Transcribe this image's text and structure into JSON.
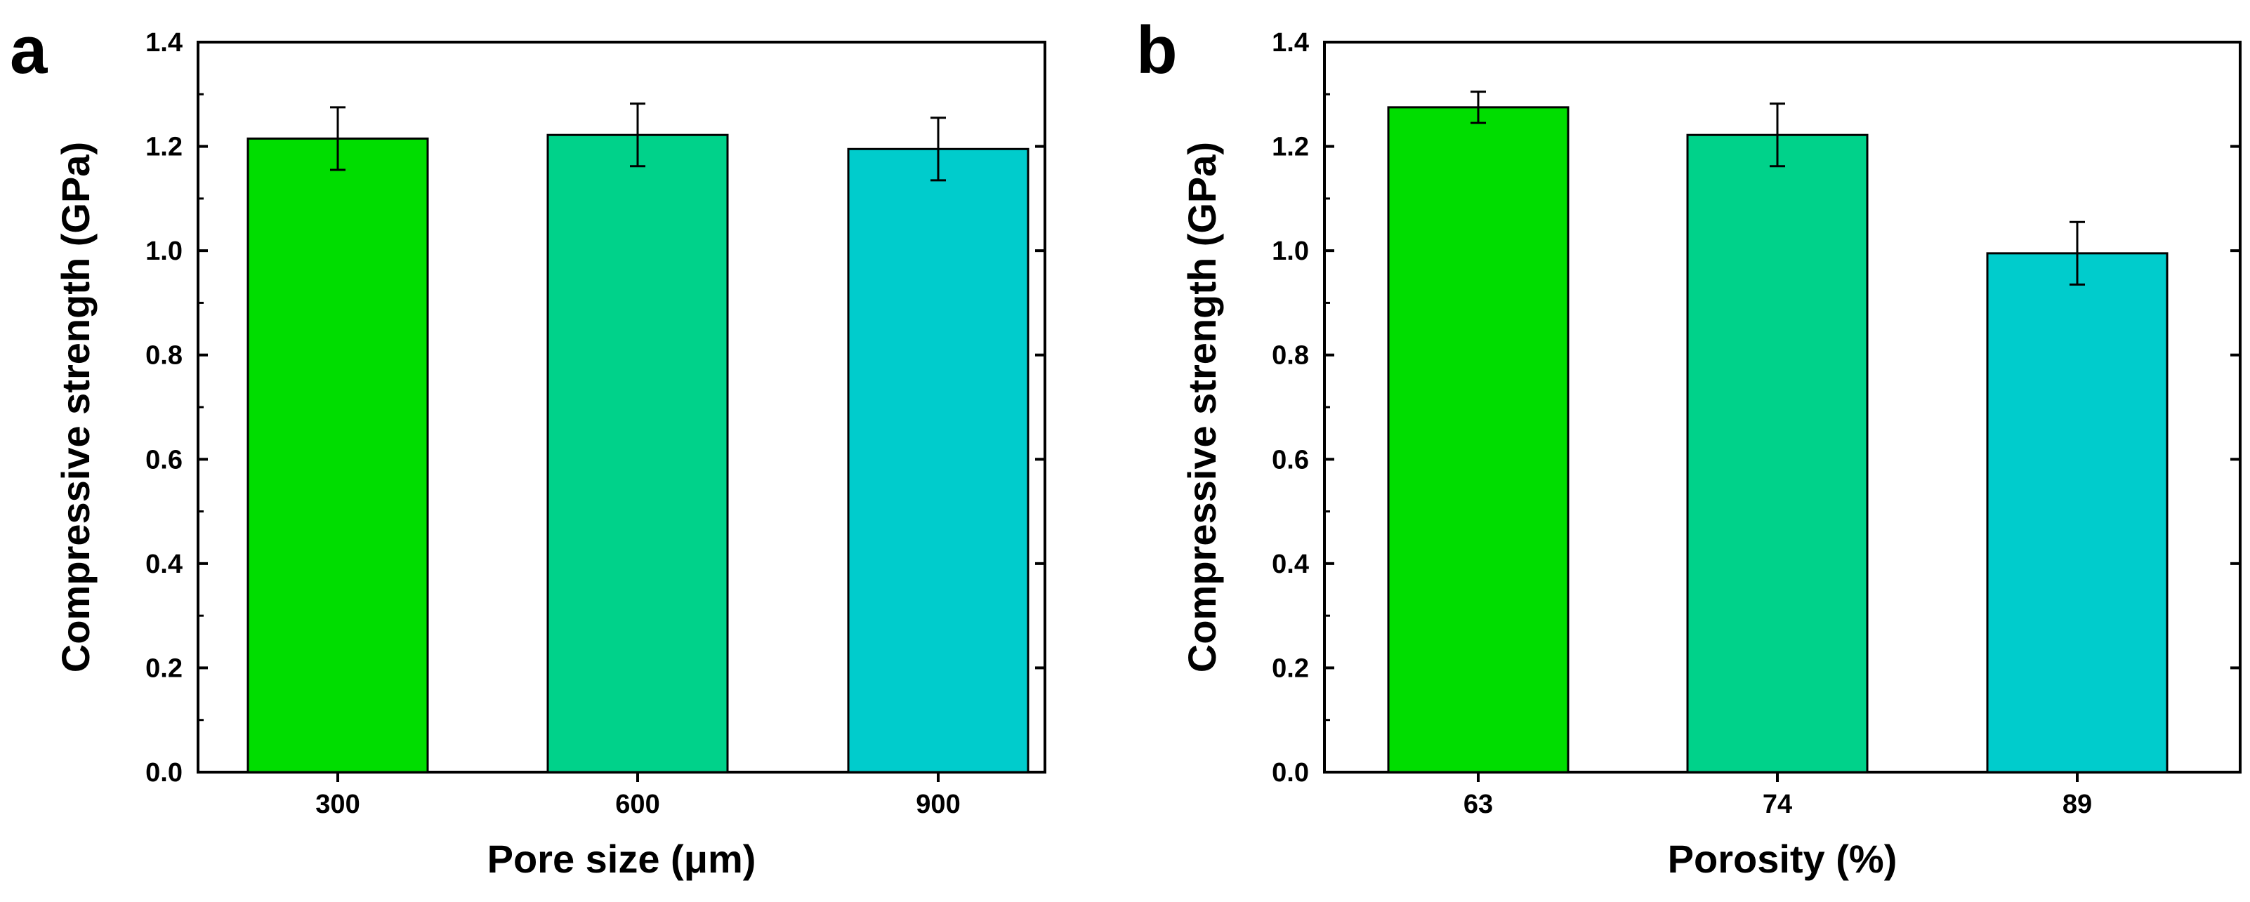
{
  "chart_data": [
    {
      "panel_label": "a",
      "type": "bar",
      "categories": [
        "300",
        "600",
        "900"
      ],
      "values": [
        1.215,
        1.222,
        1.195
      ],
      "errors": [
        0.06,
        0.06,
        0.06
      ],
      "colors": [
        "#00dd00",
        "#00d28a",
        "#00cccc"
      ],
      "xlabel": "Pore size (μm)",
      "ylabel": "Compressive strength (GPa)",
      "ylim": [
        0.0,
        1.4
      ],
      "yticks": [
        "0.0",
        "0.2",
        "0.4",
        "0.6",
        "0.8",
        "1.0",
        "1.2",
        "1.4"
      ],
      "grid": false
    },
    {
      "panel_label": "b",
      "type": "bar",
      "categories": [
        "63",
        "74",
        "89"
      ],
      "values": [
        1.275,
        1.222,
        0.995
      ],
      "errors": [
        0.03,
        0.06,
        0.06
      ],
      "colors": [
        "#00dd00",
        "#00d28a",
        "#00cccc"
      ],
      "xlabel": "Porosity (%)",
      "ylabel": "Compressive strength (GPa)",
      "ylim": [
        0.0,
        1.4
      ],
      "yticks": [
        "0.0",
        "0.2",
        "0.4",
        "0.6",
        "0.8",
        "1.0",
        "1.2",
        "1.4"
      ],
      "grid": false
    }
  ]
}
